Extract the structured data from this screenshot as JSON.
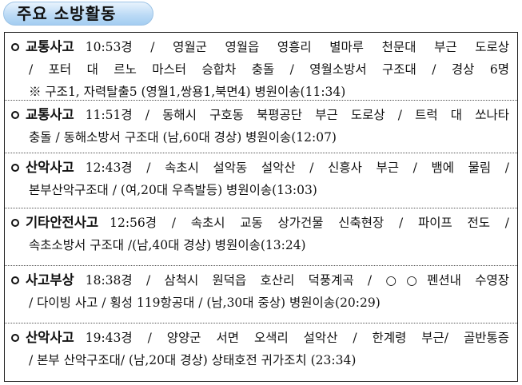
{
  "title": "주요 소방활동",
  "items": [
    {
      "category": "교통사고",
      "lines": [
        "10:53경 / 영월군 영월읍 영흥리 별마루 천문대 부근 도로상",
        "/ 포터 대 르노 마스터 승합차 충돌 / 영월소방서 구조대 / 경상 6명",
        "※ 구조1, 자력탈출5 (영월1,쌍용1,북면4) 병원이송(11:34)"
      ]
    },
    {
      "category": "교통사고",
      "lines": [
        "11:51경 / 동해시 구호동 북평공단 부근 도로상 / 트럭 대 쏘나타",
        "충돌 / 동해소방서 구조대 (남,60대 경상)  병원이송(12:07)"
      ]
    },
    {
      "category": "산악사고",
      "lines": [
        "12:43경 / 속초시 설악동 설악산 / 신흥사 부근 / 뱀에 물림 /",
        "본부산악구조대 / (여,20대 우측발등)  병원이송(13:03)"
      ]
    },
    {
      "category": "기타안전사고",
      "lines": [
        "12:56경 / 속초시 교동 상가건물 신축현장 / 파이프 전도 /",
        "속초소방서 구조대 /(남,40대 경상) 병원이송(13:24)"
      ]
    },
    {
      "category": "사고부상",
      "lines": [
        "18:38경 / 삼척시 원덕읍 호산리 덕풍계곡 / ○○펜션내 수영장",
        "/ 다이빙 사고 /  횡성 119항공대 / (남,30대 중상) 병원이송(20:29)"
      ]
    },
    {
      "category": "산악사고",
      "lines": [
        "19:43경 / 양양군 서면 오색리 설악산 / 한계령 부근/ 골반통증",
        "/  본부 산악구조대/ (남,20대 경상) 상태호전 귀가조치 (23:34)"
      ]
    }
  ]
}
